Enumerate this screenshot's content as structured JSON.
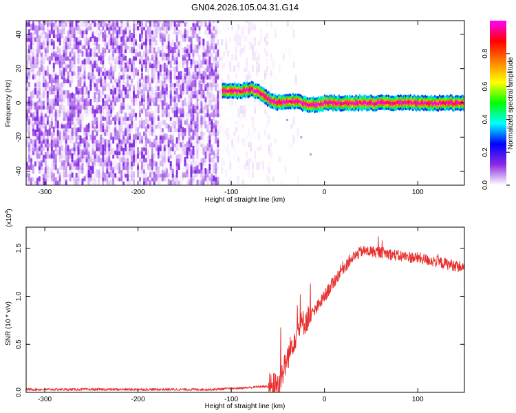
{
  "figure": {
    "title": "GN04.2026.105.04.31.G14"
  },
  "chart_data": [
    {
      "type": "heatmap",
      "title": "GN04.2026.105.04.31.G14",
      "xlabel": "Height of straight line (km)",
      "ylabel": "Frequency (Hz)",
      "xlim": [
        -320,
        150
      ],
      "ylim": [
        -48,
        48
      ],
      "x_ticks": [
        -300,
        -200,
        -100,
        0,
        100
      ],
      "x_tick_labels": [
        "-300",
        "-200",
        "-100",
        "0",
        "100"
      ],
      "y_ticks": [
        -40,
        -20,
        0,
        20,
        40
      ],
      "y_tick_labels": [
        "-40",
        "-20",
        "0",
        "20",
        "40"
      ],
      "colorbar": {
        "label": "Normalized spectral amplitude",
        "range": [
          0,
          1
        ],
        "ticks": [
          0.0,
          0.2,
          0.4,
          0.6,
          0.8
        ],
        "tick_labels": [
          "0.0",
          "0.2",
          "0.4",
          "0.6",
          "0.8"
        ],
        "colormap": [
          "#ffffff",
          "#8a2be2",
          "#0000ff",
          "#00ffff",
          "#00ff00",
          "#ffff00",
          "#ff8000",
          "#ff0000",
          "#ff00ff"
        ]
      },
      "noise_region_x": [
        -320,
        -58
      ],
      "signal_track": {
        "x": [
          -110,
          -100,
          -90,
          -80,
          -75,
          -70,
          -60,
          -50,
          -40,
          -30,
          -20,
          -10,
          0,
          20,
          40,
          60,
          80,
          100,
          120,
          150
        ],
        "freq": [
          7,
          7,
          7,
          8,
          7,
          6,
          2,
          0,
          1,
          1,
          -1,
          -1,
          0,
          0,
          0,
          0,
          0,
          0,
          0,
          0
        ]
      },
      "faint_branch": {
        "x": [
          -40,
          -25,
          -15
        ],
        "freq": [
          -10,
          -20,
          -30
        ]
      },
      "grid": false,
      "legend": "none"
    },
    {
      "type": "line",
      "xlabel": "Height of straight line (km)",
      "ylabel": "SNR (10 * v/v)",
      "y_multiplier": "(x10",
      "y_multiplier_exp": "4",
      "y_multiplier_close": ")",
      "xlim": [
        -320,
        150
      ],
      "ylim": [
        0,
        1.72
      ],
      "x_ticks": [
        -300,
        -200,
        -100,
        0,
        100
      ],
      "x_tick_labels": [
        "-300",
        "-200",
        "-100",
        "0",
        "100"
      ],
      "y_ticks": [
        0.0,
        0.5,
        1.0,
        1.5
      ],
      "y_tick_labels": [
        "0.0",
        "0.5",
        "1.0",
        "1.5"
      ],
      "color": "#e8312f",
      "series": [
        {
          "x": [
            -320,
            -120,
            -100,
            -80,
            -70,
            -60,
            -50,
            -45,
            -40,
            -35,
            -30,
            -25,
            -20,
            -10,
            0,
            10,
            20,
            30,
            40,
            60,
            80,
            100,
            120,
            150
          ],
          "values": [
            0.03,
            0.03,
            0.04,
            0.05,
            0.06,
            0.06,
            0.08,
            0.2,
            0.35,
            0.5,
            0.62,
            0.7,
            0.75,
            0.85,
            1.0,
            1.15,
            1.3,
            1.4,
            1.47,
            1.46,
            1.42,
            1.4,
            1.36,
            1.3
          ]
        }
      ],
      "grid": false,
      "legend": "none"
    }
  ]
}
